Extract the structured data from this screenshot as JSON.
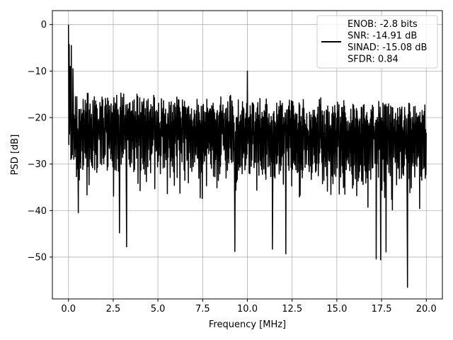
{
  "chart_data": {
    "type": "line",
    "title": "",
    "xlabel": "Frequency [MHz]",
    "ylabel": "PSD [dB]",
    "xlim": [
      -0.9,
      20.9
    ],
    "ylim": [
      -59,
      3
    ],
    "grid": true,
    "legend_position": "top-right",
    "x_ticks": [
      {
        "value": 0.0,
        "label": "0.0"
      },
      {
        "value": 2.5,
        "label": "2.5"
      },
      {
        "value": 5.0,
        "label": "5.0"
      },
      {
        "value": 7.5,
        "label": "7.5"
      },
      {
        "value": 10.0,
        "label": "10.0"
      },
      {
        "value": 12.5,
        "label": "12.5"
      },
      {
        "value": 15.0,
        "label": "15.0"
      },
      {
        "value": 17.5,
        "label": "17.5"
      },
      {
        "value": 20.0,
        "label": "20.0"
      }
    ],
    "y_ticks": [
      {
        "value": 0,
        "label": "0"
      },
      {
        "value": -10,
        "label": "−10"
      },
      {
        "value": -20,
        "label": "−20"
      },
      {
        "value": -30,
        "label": "−30"
      },
      {
        "value": -40,
        "label": "−40"
      },
      {
        "value": -50,
        "label": "−50"
      }
    ],
    "legend": [
      "ENOB: -2.8 bits",
      "SNR: -14.91 dB",
      "SINAD: -15.08 dB",
      "SFDR: 0.84"
    ],
    "series": [
      {
        "color": "#000000",
        "x_range": [
          0.0,
          20.0
        ],
        "num_points": 1024,
        "noise_floor_typical": [
          -33,
          -15
        ],
        "peaks": [
          {
            "x": 0.0,
            "y": 0.0
          },
          {
            "x": 0.04,
            "y": -4.3
          },
          {
            "x": 0.1,
            "y": -9
          },
          {
            "x": 0.16,
            "y": -4.5
          },
          {
            "x": 0.25,
            "y": -9.5
          },
          {
            "x": 10.0,
            "y": -10.0
          }
        ],
        "dips": [
          {
            "x": 0.55,
            "y": -40.5
          },
          {
            "x": 2.85,
            "y": -44.8
          },
          {
            "x": 3.25,
            "y": -47.8
          },
          {
            "x": 9.3,
            "y": -48.8
          },
          {
            "x": 11.4,
            "y": -48.3
          },
          {
            "x": 12.15,
            "y": -49.3
          },
          {
            "x": 17.2,
            "y": -50.4
          },
          {
            "x": 17.45,
            "y": -50.6
          },
          {
            "x": 17.75,
            "y": -48.9
          },
          {
            "x": 18.95,
            "y": -56.5
          }
        ]
      }
    ]
  }
}
